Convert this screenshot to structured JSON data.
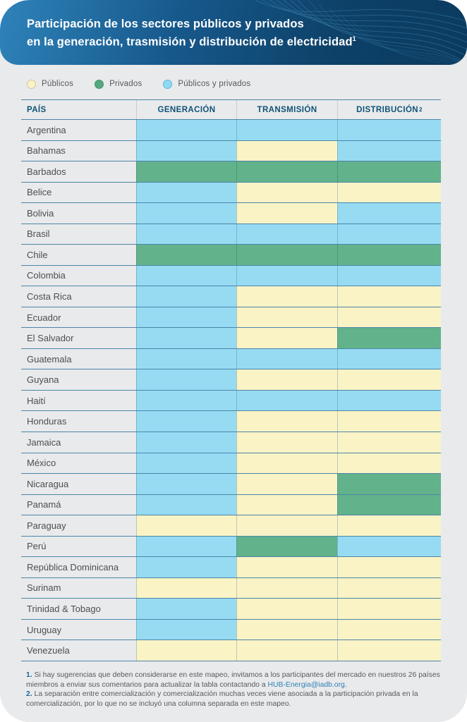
{
  "header": {
    "title_line1": "Participación de los sectores públicos y privados",
    "title_line2_prefix": "en la ",
    "title_line2_bold": "generación, trasmisión y distribución de electricidad",
    "title_sup": "1"
  },
  "legend": {
    "items": [
      {
        "key": "publicos",
        "label": "Públicos",
        "color": "#FAF3C6",
        "border": "#CFC69E"
      },
      {
        "key": "privados",
        "label": "Privados",
        "color": "#55A77D",
        "border": "#479668"
      },
      {
        "key": "mixto",
        "label": "Públicos y privados",
        "color": "#8FD9F2",
        "border": "#5FB9DC"
      }
    ]
  },
  "colors": {
    "publicos": "#FAF3C6",
    "privados": "#62B28B",
    "mixto": "#96DBF2"
  },
  "chart_data": {
    "type": "table",
    "title": "Participación de los sectores públicos y privados en la generación, trasmisión y distribución de electricidad",
    "columns": [
      "PAÍS",
      "GENERACIÓN",
      "TRANSMISIÓN",
      "DISTRIBUCIÓN"
    ],
    "distribution_sup": "2",
    "value_legend": {
      "publicos": "Públicos",
      "privados": "Privados",
      "mixto": "Públicos y privados"
    },
    "rows": [
      {
        "country": "Argentina",
        "generacion": "mixto",
        "transmision": "mixto",
        "distribucion": "mixto"
      },
      {
        "country": "Bahamas",
        "generacion": "mixto",
        "transmision": "publicos",
        "distribucion": "mixto"
      },
      {
        "country": "Barbados",
        "generacion": "privados",
        "transmision": "privados",
        "distribucion": "privados"
      },
      {
        "country": "Belice",
        "generacion": "mixto",
        "transmision": "publicos",
        "distribucion": "publicos"
      },
      {
        "country": "Bolivia",
        "generacion": "mixto",
        "transmision": "publicos",
        "distribucion": "mixto"
      },
      {
        "country": "Brasil",
        "generacion": "mixto",
        "transmision": "mixto",
        "distribucion": "mixto"
      },
      {
        "country": "Chile",
        "generacion": "privados",
        "transmision": "privados",
        "distribucion": "privados"
      },
      {
        "country": "Colombia",
        "generacion": "mixto",
        "transmision": "mixto",
        "distribucion": "mixto"
      },
      {
        "country": "Costa Rica",
        "generacion": "mixto",
        "transmision": "publicos",
        "distribucion": "publicos"
      },
      {
        "country": "Ecuador",
        "generacion": "mixto",
        "transmision": "publicos",
        "distribucion": "publicos"
      },
      {
        "country": "El Salvador",
        "generacion": "mixto",
        "transmision": "publicos",
        "distribucion": "privados"
      },
      {
        "country": "Guatemala",
        "generacion": "mixto",
        "transmision": "mixto",
        "distribucion": "mixto"
      },
      {
        "country": "Guyana",
        "generacion": "mixto",
        "transmision": "publicos",
        "distribucion": "publicos"
      },
      {
        "country": "Haití",
        "generacion": "mixto",
        "transmision": "mixto",
        "distribucion": "mixto"
      },
      {
        "country": "Honduras",
        "generacion": "mixto",
        "transmision": "publicos",
        "distribucion": "publicos"
      },
      {
        "country": "Jamaica",
        "generacion": "mixto",
        "transmision": "publicos",
        "distribucion": "publicos"
      },
      {
        "country": "México",
        "generacion": "mixto",
        "transmision": "publicos",
        "distribucion": "publicos"
      },
      {
        "country": "Nicaragua",
        "generacion": "mixto",
        "transmision": "publicos",
        "distribucion": "privados"
      },
      {
        "country": "Panamá",
        "generacion": "mixto",
        "transmision": "publicos",
        "distribucion": "privados"
      },
      {
        "country": "Paraguay",
        "generacion": "publicos",
        "transmision": "publicos",
        "distribucion": "publicos"
      },
      {
        "country": "Perú",
        "generacion": "mixto",
        "transmision": "privados",
        "distribucion": "mixto"
      },
      {
        "country": "República Dominicana",
        "generacion": "mixto",
        "transmision": "publicos",
        "distribucion": "publicos"
      },
      {
        "country": "Surinam",
        "generacion": "publicos",
        "transmision": "publicos",
        "distribucion": "publicos"
      },
      {
        "country": "Trinidad & Tobago",
        "generacion": "mixto",
        "transmision": "publicos",
        "distribucion": "publicos"
      },
      {
        "country": "Uruguay",
        "generacion": "mixto",
        "transmision": "publicos",
        "distribucion": "publicos"
      },
      {
        "country": "Venezuela",
        "generacion": "publicos",
        "transmision": "publicos",
        "distribucion": "publicos"
      }
    ]
  },
  "footnotes": [
    {
      "number": "1.",
      "text": " Si hay sugerencias que deben considerarse en este mapeo, invitamos a los participantes del mercado en nuestros 26 países miembros a enviar sus comentarios para actualizar la tabla contactando a ",
      "link": "HUB-Energia@iadb.org",
      "suffix": "."
    },
    {
      "number": "2.",
      "text": " La separación entre comercialización y comercialización muchas veces viene asociada a la participación privada en la comercialización, por lo que no se incluyó una columna separada en este mapeo.",
      "link": "",
      "suffix": ""
    }
  ]
}
